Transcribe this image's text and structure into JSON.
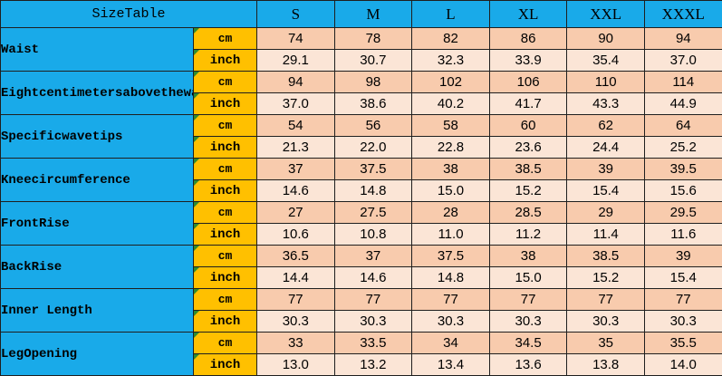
{
  "header": {
    "label": "SizeTable",
    "sizes": [
      "S",
      "M",
      "L",
      "XL",
      "XXL",
      "XXXL"
    ]
  },
  "units": {
    "cm": "cm",
    "inch": "inch"
  },
  "rows": [
    {
      "label": "Waist",
      "cm": [
        "74",
        "78",
        "82",
        "86",
        "90",
        "94"
      ],
      "inch": [
        "29.1",
        "30.7",
        "32.3",
        "33.9",
        "35.4",
        "37.0"
      ]
    },
    {
      "label": "Eightcentimetersabovethewaves",
      "cm": [
        "94",
        "98",
        "102",
        "106",
        "110",
        "114"
      ],
      "inch": [
        "37.0",
        "38.6",
        "40.2",
        "41.7",
        "43.3",
        "44.9"
      ]
    },
    {
      "label": "Specificwavetips",
      "cm": [
        "54",
        "56",
        "58",
        "60",
        "62",
        "64"
      ],
      "inch": [
        "21.3",
        "22.0",
        "22.8",
        "23.6",
        "24.4",
        "25.2"
      ]
    },
    {
      "label": "Kneecircumference",
      "cm": [
        "37",
        "37.5",
        "38",
        "38.5",
        "39",
        "39.5"
      ],
      "inch": [
        "14.6",
        "14.8",
        "15.0",
        "15.2",
        "15.4",
        "15.6"
      ]
    },
    {
      "label": "FrontRise",
      "cm": [
        "27",
        "27.5",
        "28",
        "28.5",
        "29",
        "29.5"
      ],
      "inch": [
        "10.6",
        "10.8",
        "11.0",
        "11.2",
        "11.4",
        "11.6"
      ]
    },
    {
      "label": "BackRise",
      "cm": [
        "36.5",
        "37",
        "37.5",
        "38",
        "38.5",
        "39"
      ],
      "inch": [
        "14.4",
        "14.6",
        "14.8",
        "15.0",
        "15.2",
        "15.4"
      ]
    },
    {
      "label": "Inner Length",
      "cm": [
        "77",
        "77",
        "77",
        "77",
        "77",
        "77"
      ],
      "inch": [
        "30.3",
        "30.3",
        "30.3",
        "30.3",
        "30.3",
        "30.3"
      ]
    },
    {
      "label": "LegOpening",
      "cm": [
        "33",
        "33.5",
        "34",
        "34.5",
        "35",
        "35.5"
      ],
      "inch": [
        "13.0",
        "13.2",
        "13.4",
        "13.6",
        "13.8",
        "14.0"
      ]
    }
  ]
}
